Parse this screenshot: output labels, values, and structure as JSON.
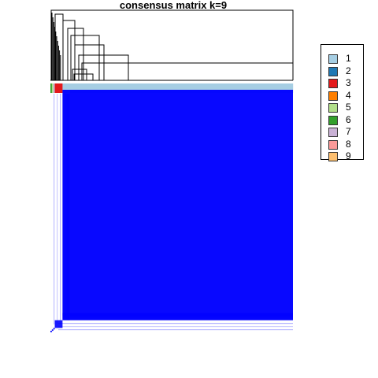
{
  "chart_data": {
    "type": "heatmap",
    "title": "consensus matrix k=9",
    "value_range": [
      0,
      1
    ],
    "color_scale": [
      "#ffffff",
      "#0000ff"
    ],
    "dendrogram": "top",
    "annotation_bar": "top",
    "legend_position": "right",
    "legend": [
      {
        "label": "1",
        "color": "#a6cee3"
      },
      {
        "label": "2",
        "color": "#1f78b4"
      },
      {
        "label": "3",
        "color": "#e31a1c"
      },
      {
        "label": "4",
        "color": "#ff7f00"
      },
      {
        "label": "5",
        "color": "#b2df8a"
      },
      {
        "label": "6",
        "color": "#33a02c"
      },
      {
        "label": "7",
        "color": "#cab2d6"
      },
      {
        "label": "8",
        "color": "#fb9a99"
      },
      {
        "label": "9",
        "color": "#fdbf6f"
      }
    ],
    "annotation_segments": [
      {
        "cluster": "6",
        "fraction": 0.006
      },
      {
        "cluster": "5",
        "fraction": 0.006
      },
      {
        "cluster": "7",
        "fraction": 0.006
      },
      {
        "cluster": "3",
        "fraction": 0.032
      },
      {
        "cluster": "1",
        "fraction": 0.95
      }
    ],
    "blocks": [
      {
        "cluster": "6",
        "fraction": 0.006,
        "consensus": 1.0
      },
      {
        "cluster": "5",
        "fraction": 0.006,
        "consensus": 1.0
      },
      {
        "cluster": "7",
        "fraction": 0.006,
        "consensus": 1.0
      },
      {
        "cluster": "3",
        "fraction": 0.032,
        "consensus": 0.9
      },
      {
        "cluster": "1",
        "fraction": 0.95,
        "consensus": 0.97
      }
    ]
  }
}
